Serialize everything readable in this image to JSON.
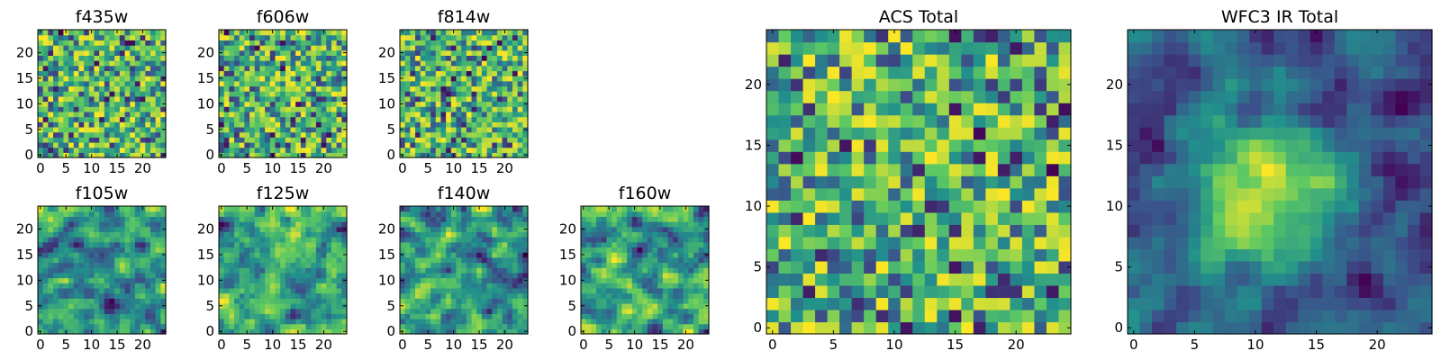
{
  "colormap": [
    "#440154",
    "#3b528b",
    "#21918c",
    "#5ec962",
    "#fde725"
  ],
  "chart_data": [
    {
      "type": "heatmap",
      "title": "f435w",
      "grid_size": 25,
      "xlim": [
        -0.5,
        24.5
      ],
      "ylim": [
        -0.5,
        24.5
      ],
      "xticks": [
        0,
        5,
        10,
        15,
        20
      ],
      "yticks": [
        0,
        5,
        10,
        15,
        20
      ],
      "xlabel": "",
      "ylabel": "",
      "pattern": "noise",
      "smoothness": 0,
      "peak": null
    },
    {
      "type": "heatmap",
      "title": "f606w",
      "grid_size": 25,
      "xlim": [
        -0.5,
        24.5
      ],
      "ylim": [
        -0.5,
        24.5
      ],
      "xticks": [
        0,
        5,
        10,
        15,
        20
      ],
      "yticks": [
        0,
        5,
        10,
        15,
        20
      ],
      "xlabel": "",
      "ylabel": "",
      "pattern": "noise",
      "smoothness": 0,
      "peak": null
    },
    {
      "type": "heatmap",
      "title": "f814w",
      "grid_size": 25,
      "xlim": [
        -0.5,
        24.5
      ],
      "ylim": [
        -0.5,
        24.5
      ],
      "xticks": [
        0,
        5,
        10,
        15,
        20
      ],
      "yticks": [
        0,
        5,
        10,
        15,
        20
      ],
      "xlabel": "",
      "ylabel": "",
      "pattern": "noise",
      "smoothness": 0,
      "peak": null
    },
    {
      "type": "heatmap",
      "title": "f105w",
      "grid_size": 25,
      "xlim": [
        -0.5,
        24.5
      ],
      "ylim": [
        -0.5,
        24.5
      ],
      "xticks": [
        0,
        5,
        10,
        15,
        20
      ],
      "yticks": [
        0,
        5,
        10,
        15,
        20
      ],
      "xlabel": "",
      "ylabel": "",
      "pattern": "correlated noise",
      "smoothness": 1,
      "peak": null
    },
    {
      "type": "heatmap",
      "title": "f125w",
      "grid_size": 25,
      "xlim": [
        -0.5,
        24.5
      ],
      "ylim": [
        -0.5,
        24.5
      ],
      "xticks": [
        0,
        5,
        10,
        15,
        20
      ],
      "yticks": [
        0,
        5,
        10,
        15,
        20
      ],
      "xlabel": "",
      "ylabel": "",
      "pattern": "correlated noise",
      "smoothness": 1,
      "peak": null
    },
    {
      "type": "heatmap",
      "title": "f140w",
      "grid_size": 25,
      "xlim": [
        -0.5,
        24.5
      ],
      "ylim": [
        -0.5,
        24.5
      ],
      "xticks": [
        0,
        5,
        10,
        15,
        20
      ],
      "yticks": [
        0,
        5,
        10,
        15,
        20
      ],
      "xlabel": "",
      "ylabel": "",
      "pattern": "correlated noise",
      "smoothness": 1,
      "peak": null
    },
    {
      "type": "heatmap",
      "title": "f160w",
      "grid_size": 25,
      "xlim": [
        -0.5,
        24.5
      ],
      "ylim": [
        -0.5,
        24.5
      ],
      "xticks": [
        0,
        5,
        10,
        15,
        20
      ],
      "yticks": [
        0,
        5,
        10,
        15,
        20
      ],
      "xlabel": "",
      "ylabel": "",
      "pattern": "correlated noise",
      "smoothness": 1,
      "peak": null
    },
    {
      "type": "heatmap",
      "title": "ACS Total",
      "grid_size": 25,
      "xlim": [
        -0.5,
        24.5
      ],
      "ylim": [
        -0.5,
        24.5
      ],
      "xticks": [
        0,
        5,
        10,
        15,
        20
      ],
      "yticks": [
        0,
        5,
        10,
        15,
        20
      ],
      "xlabel": "",
      "ylabel": "",
      "pattern": "noise",
      "smoothness": 0,
      "peak": null
    },
    {
      "type": "heatmap",
      "title": "WFC3 IR Total",
      "grid_size": 25,
      "xlim": [
        -0.5,
        24.5
      ],
      "ylim": [
        -0.5,
        24.5
      ],
      "xticks": [
        0,
        5,
        10,
        15,
        20
      ],
      "yticks": [
        0,
        5,
        10,
        15,
        20
      ],
      "xlabel": "",
      "ylabel": "",
      "pattern": "central source",
      "smoothness": 1,
      "peak": {
        "x": 11,
        "y": 11
      }
    }
  ]
}
